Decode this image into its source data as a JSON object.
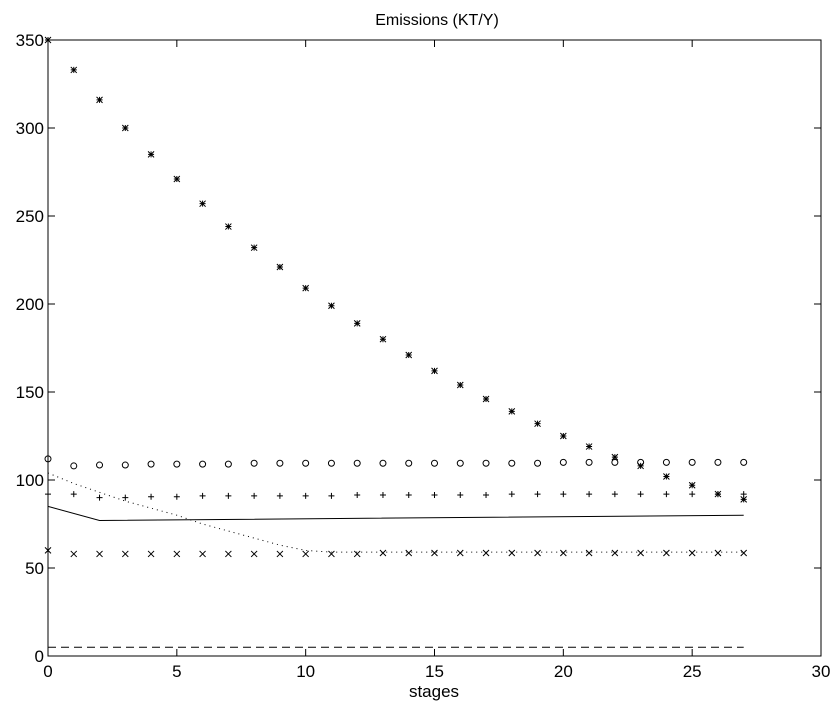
{
  "chart_data": {
    "type": "line",
    "title": "Emissions (KT/Y)",
    "xlabel": "stages",
    "ylabel": "",
    "xlim": [
      0,
      30
    ],
    "ylim": [
      0,
      350
    ],
    "xticks": [
      0,
      5,
      10,
      15,
      20,
      25,
      30
    ],
    "yticks": [
      0,
      50,
      100,
      150,
      200,
      250,
      300,
      350
    ],
    "grid": false,
    "legend": "none",
    "series": [
      {
        "style": "markers",
        "marker": "asterisk",
        "x": [
          0,
          1,
          2,
          3,
          4,
          5,
          6,
          7,
          8,
          9,
          10,
          11,
          12,
          13,
          14,
          15,
          16,
          17,
          18,
          19,
          20,
          21,
          22,
          23,
          24,
          25,
          26,
          27
        ],
        "y": [
          350,
          333,
          316,
          300,
          285,
          271,
          257,
          244,
          232,
          221,
          209,
          199,
          189,
          180,
          171,
          162,
          154,
          146,
          139,
          132,
          125,
          119,
          113,
          108,
          102,
          97,
          92,
          89
        ]
      },
      {
        "style": "markers",
        "marker": "circle",
        "x": [
          0,
          1,
          2,
          3,
          4,
          5,
          6,
          7,
          8,
          9,
          10,
          11,
          12,
          13,
          14,
          15,
          16,
          17,
          18,
          19,
          20,
          21,
          22,
          23,
          24,
          25,
          26,
          27
        ],
        "y": [
          112,
          108,
          108.5,
          108.5,
          109,
          109,
          109,
          109,
          109.5,
          109.5,
          109.5,
          109.5,
          109.5,
          109.5,
          109.5,
          109.5,
          109.5,
          109.5,
          109.5,
          109.5,
          110,
          110,
          110,
          110,
          110,
          110,
          110,
          110
        ]
      },
      {
        "style": "markers",
        "marker": "plus",
        "x": [
          0,
          1,
          2,
          3,
          4,
          5,
          6,
          7,
          8,
          9,
          10,
          11,
          12,
          13,
          14,
          15,
          16,
          17,
          18,
          19,
          20,
          21,
          22,
          23,
          24,
          25,
          26,
          27
        ],
        "y": [
          92,
          92,
          90,
          90,
          90.5,
          90.5,
          91,
          91,
          91,
          91,
          91,
          91,
          91.5,
          91.5,
          91.5,
          91.5,
          91.5,
          91.5,
          92,
          92,
          92,
          92,
          92,
          92,
          92,
          92,
          92,
          92
        ]
      },
      {
        "style": "markers",
        "marker": "x",
        "x": [
          0,
          1,
          2,
          3,
          4,
          5,
          6,
          7,
          8,
          9,
          10,
          11,
          12,
          13,
          14,
          15,
          16,
          17,
          18,
          19,
          20,
          21,
          22,
          23,
          24,
          25,
          26,
          27
        ],
        "y": [
          60,
          58,
          58,
          58,
          58,
          58,
          58,
          58,
          58,
          58,
          58,
          58,
          58,
          58.5,
          58.5,
          58.5,
          58.5,
          58.5,
          58.5,
          58.5,
          58.5,
          58.5,
          58.5,
          58.5,
          58.5,
          58.5,
          58.5,
          58.5
        ]
      },
      {
        "style": "dotted",
        "x": [
          0,
          1,
          2,
          3,
          4,
          5,
          6,
          7,
          8,
          9,
          10,
          11,
          12,
          13,
          14,
          15,
          16,
          17,
          18,
          19,
          20,
          21,
          22,
          23,
          24,
          25,
          26,
          27
        ],
        "y": [
          104,
          98,
          93,
          88,
          84,
          80,
          75,
          71,
          67,
          63,
          60,
          59,
          59,
          59,
          59,
          59,
          59,
          59,
          59,
          59,
          59,
          59,
          59,
          59,
          59,
          59,
          59,
          59
        ]
      },
      {
        "style": "solid",
        "x": [
          0,
          2,
          27
        ],
        "y": [
          85,
          77,
          80
        ]
      },
      {
        "style": "dashed",
        "x": [
          0,
          27
        ],
        "y": [
          5,
          5
        ]
      }
    ]
  }
}
